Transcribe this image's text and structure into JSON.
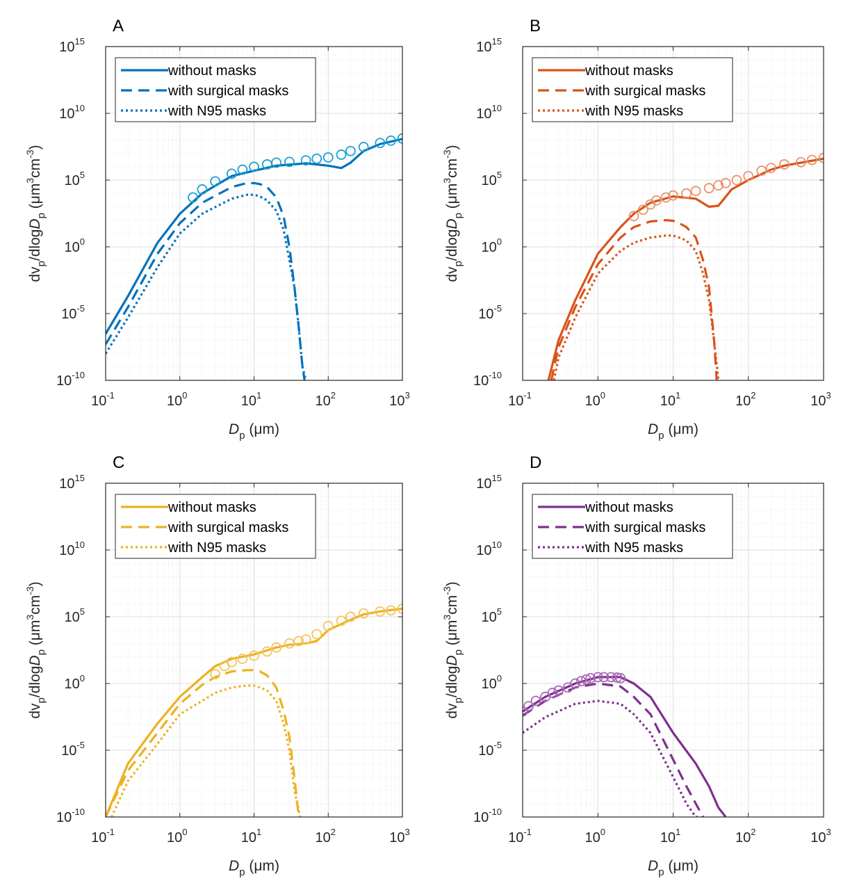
{
  "chart_data": [
    {
      "type": "line",
      "panel": "A",
      "color": "#0072BD",
      "marker_color": "#1AA0D0",
      "xscale": "log",
      "yscale": "log",
      "xlim": [
        0.1,
        1000
      ],
      "ylim": [
        1e-10,
        1000000000000000.0
      ],
      "xlabel_main": "D",
      "xlabel_sub": "p",
      "xlabel_unit": " (μm)",
      "ylabel_parts": [
        "dv",
        "p",
        "/dlog",
        "D",
        "p",
        " (μm",
        "3",
        "cm",
        "-3",
        ")"
      ],
      "grid": true,
      "legend_position": "top-left",
      "series": [
        {
          "name": "without masks",
          "style": "solid",
          "x": [
            0.1,
            0.2,
            0.5,
            1,
            2,
            5,
            10,
            20,
            50,
            100,
            150,
            200,
            300,
            500,
            1000
          ],
          "y": [
            3e-07,
            0.0002,
            2,
            300,
            10000.0,
            200000.0,
            500000.0,
            1200000.0,
            1800000.0,
            1200000.0,
            800000.0,
            2000000.0,
            15000000.0,
            50000000.0,
            120000000.0
          ]
        },
        {
          "name": "with surgical masks",
          "style": "dashed",
          "x": [
            0.1,
            0.2,
            0.5,
            1,
            2,
            5,
            8,
            10,
            12,
            15,
            20,
            25,
            30,
            35,
            40,
            45,
            48
          ],
          "y": [
            5e-08,
            3e-05,
            0.3,
            60,
            2000.0,
            30000.0,
            60000.0,
            60000.0,
            50000.0,
            30000.0,
            5000.0,
            200,
            1,
            0.001,
            1e-06,
            1e-09,
            1e-10
          ]
        },
        {
          "name": "with N95 masks",
          "style": "dotted",
          "x": [
            0.1,
            0.2,
            0.5,
            1,
            2,
            5,
            8,
            10,
            12,
            15,
            20,
            25,
            30,
            35,
            40,
            45,
            50
          ],
          "y": [
            1e-08,
            5e-06,
            0.03,
            10,
            300,
            4000.0,
            8000.0,
            8000.0,
            6000.0,
            3000.0,
            500,
            20,
            0.1,
            0.001,
            1e-06,
            1e-09,
            1e-10
          ]
        },
        {
          "name": "",
          "style": "markers",
          "x": [
            1.5,
            2,
            3,
            5,
            7,
            10,
            15,
            20,
            30,
            50,
            70,
            100,
            150,
            200,
            300,
            500,
            700,
            1000
          ],
          "y": [
            5000.0,
            20000.0,
            80000.0,
            300000.0,
            600000.0,
            1000000.0,
            1500000.0,
            2000000.0,
            2300000.0,
            3000000.0,
            4000000.0,
            5000000.0,
            8000000.0,
            15000000.0,
            30000000.0,
            60000000.0,
            90000000.0,
            130000000.0
          ]
        }
      ]
    },
    {
      "type": "line",
      "panel": "B",
      "color": "#D95319",
      "marker_color": "#E8926A",
      "xscale": "log",
      "yscale": "log",
      "xlim": [
        0.1,
        1000
      ],
      "ylim": [
        1e-10,
        1000000000000000.0
      ],
      "xlabel_main": "D",
      "xlabel_sub": "p",
      "xlabel_unit": " (μm)",
      "ylabel_parts": [
        "dv",
        "p",
        "/dlog",
        "D",
        "p",
        " (μm",
        "3",
        "cm",
        "-3",
        ")"
      ],
      "grid": true,
      "legend_position": "top-left",
      "series": [
        {
          "name": "without masks",
          "style": "solid",
          "x": [
            0.22,
            0.3,
            0.5,
            1,
            2,
            3,
            5,
            10,
            20,
            30,
            40,
            60,
            100,
            200,
            300,
            500,
            1000
          ],
          "y": [
            1e-10,
            1e-07,
            0.0001,
            0.3,
            30,
            300,
            2000.0,
            6000.0,
            4000.0,
            1000.0,
            1200.0,
            20000.0,
            100000.0,
            600000.0,
            1200000.0,
            2000000.0,
            4000000.0
          ]
        },
        {
          "name": "with surgical masks",
          "style": "dashed",
          "x": [
            0.24,
            0.3,
            0.5,
            1,
            2,
            3,
            5,
            8,
            10,
            12,
            15,
            20,
            25,
            30,
            35,
            38
          ],
          "y": [
            1e-10,
            3e-08,
            3e-05,
            0.05,
            5,
            30,
            80,
            100,
            90,
            60,
            30,
            5,
            0.1,
            0.001,
            1e-07,
            1e-10
          ]
        },
        {
          "name": "with N95 masks",
          "style": "dotted",
          "x": [
            0.26,
            0.3,
            0.5,
            1,
            2,
            3,
            5,
            8,
            10,
            12,
            15,
            20,
            25,
            30,
            35,
            40
          ],
          "y": [
            1e-10,
            5e-09,
            5e-06,
            0.01,
            0.5,
            2,
            5,
            7,
            7,
            5,
            3,
            0.5,
            0.01,
            0.0001,
            1e-07,
            1e-10
          ]
        },
        {
          "name": "",
          "style": "markers",
          "x": [
            3,
            4,
            5,
            6,
            8,
            10,
            15,
            20,
            30,
            40,
            50,
            70,
            100,
            150,
            200,
            300,
            500,
            700,
            1000
          ],
          "y": [
            200,
            600,
            1500.0,
            3000.0,
            5000.0,
            7000.0,
            10000.0,
            15000.0,
            25000.0,
            40000.0,
            60000.0,
            100000.0,
            200000.0,
            500000.0,
            800000.0,
            1500000.0,
            2200000.0,
            3200000.0,
            4500000.0
          ]
        }
      ]
    },
    {
      "type": "line",
      "panel": "C",
      "color": "#EDB120",
      "marker_color": "#F2C65A",
      "xscale": "log",
      "yscale": "log",
      "xlim": [
        0.1,
        1000
      ],
      "ylim": [
        1e-10,
        1000000000000000.0
      ],
      "xlabel_main": "D",
      "xlabel_sub": "p",
      "xlabel_unit": " (μm)",
      "ylabel_parts": [
        "dv",
        "p",
        "/dlog",
        "D",
        "p",
        " (μm",
        "3",
        "cm",
        "-3",
        ")"
      ],
      "grid": true,
      "legend_position": "top-left",
      "series": [
        {
          "name": "without masks",
          "style": "solid",
          "x": [
            0.1,
            0.2,
            0.5,
            1,
            2,
            3,
            5,
            10,
            20,
            30,
            50,
            70,
            100,
            200,
            300,
            500,
            1000
          ],
          "y": [
            1e-10,
            1e-06,
            0.001,
            0.1,
            3,
            20,
            70,
            150,
            500,
            800,
            1000.0,
            1500.0,
            10000.0,
            60000.0,
            150000.0,
            250000.0,
            400000.0
          ]
        },
        {
          "name": "with surgical masks",
          "style": "dashed",
          "x": [
            0.1,
            0.2,
            0.5,
            1,
            2,
            3,
            5,
            8,
            10,
            12,
            15,
            20,
            25,
            30,
            35,
            40
          ],
          "y": [
            1e-10,
            3e-07,
            0.0002,
            0.03,
            0.8,
            3,
            8,
            10,
            10,
            8,
            4,
            0.5,
            0.01,
            0.0001,
            1e-07,
            1e-10
          ]
        },
        {
          "name": "with N95 masks",
          "style": "dotted",
          "x": [
            0.12,
            0.2,
            0.5,
            1,
            2,
            3,
            5,
            8,
            10,
            12,
            15,
            20,
            25,
            30,
            35,
            42
          ],
          "y": [
            1e-10,
            5e-08,
            3e-05,
            0.005,
            0.05,
            0.2,
            0.5,
            0.7,
            0.7,
            0.5,
            0.3,
            0.05,
            0.001,
            1e-05,
            1e-08,
            1e-10
          ]
        },
        {
          "name": "",
          "style": "markers",
          "x": [
            3,
            4,
            5,
            7,
            10,
            15,
            20,
            30,
            40,
            50,
            70,
            100,
            150,
            200,
            300,
            500,
            700,
            1000
          ],
          "y": [
            5,
            20,
            40,
            70,
            120,
            250,
            500,
            1000.0,
            1500.0,
            2000.0,
            5000.0,
            20000.0,
            50000.0,
            100000.0,
            180000.0,
            250000.0,
            300000.0,
            400000.0
          ]
        }
      ]
    },
    {
      "type": "line",
      "panel": "D",
      "color": "#7E2F8E",
      "marker_color": "#A869B5",
      "xscale": "log",
      "yscale": "log",
      "xlim": [
        0.1,
        1000
      ],
      "ylim": [
        1e-10,
        1000000000000000.0
      ],
      "xlabel_main": "D",
      "xlabel_sub": "p",
      "xlabel_unit": " (μm)",
      "ylabel_parts": [
        "dv",
        "p",
        "/dlog",
        "D",
        "p",
        " (μm",
        "3",
        "cm",
        "-3",
        ")"
      ],
      "grid": true,
      "legend_position": "top-left",
      "series": [
        {
          "name": "without masks",
          "style": "solid",
          "x": [
            0.1,
            0.2,
            0.5,
            1,
            2,
            3,
            5,
            10,
            20,
            30,
            40,
            50
          ],
          "y": [
            0.008,
            0.1,
            1,
            3,
            3,
            1,
            0.1,
            0.0002,
            1e-06,
            2e-08,
            5e-10,
            1e-10
          ]
        },
        {
          "name": "with surgical masks",
          "style": "dashed",
          "x": [
            0.1,
            0.2,
            0.5,
            1,
            2,
            3,
            5,
            10,
            15,
            20,
            25
          ],
          "y": [
            0.004,
            0.05,
            0.5,
            1,
            0.6,
            0.1,
            0.005,
            2e-06,
            2e-08,
            1e-09,
            1e-10
          ]
        },
        {
          "name": "with N95 masks",
          "style": "dotted",
          "x": [
            0.1,
            0.2,
            0.5,
            1,
            2,
            3,
            5,
            10,
            15,
            20,
            22
          ],
          "y": [
            0.0002,
            0.003,
            0.03,
            0.05,
            0.03,
            0.005,
            0.0002,
            1e-07,
            1e-09,
            1e-10,
            1e-10
          ]
        },
        {
          "name": "",
          "style": "markers",
          "x": [
            0.1,
            0.12,
            0.15,
            0.2,
            0.25,
            0.3,
            0.4,
            0.5,
            0.6,
            0.7,
            0.8,
            1,
            1.2,
            1.5,
            1.8,
            2
          ],
          "y": [
            0.008,
            0.02,
            0.05,
            0.1,
            0.2,
            0.3,
            0.5,
            1,
            1.5,
            2,
            2.5,
            3,
            3,
            3,
            2.8,
            2.5
          ]
        }
      ]
    }
  ]
}
